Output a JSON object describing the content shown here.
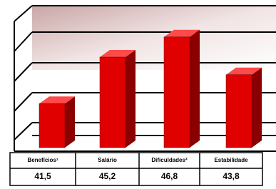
{
  "chart_data": {
    "type": "bar3d",
    "categories": [
      "Benefícios¹",
      "Salário",
      "Dificuldades²",
      "Estabilidade"
    ],
    "values": [
      41.5,
      45.2,
      46.8,
      43.8
    ],
    "value_labels": [
      "41,5",
      "45,2",
      "46,8",
      "43,8"
    ],
    "color": "#e00000",
    "ylim": [
      38,
      49
    ]
  }
}
